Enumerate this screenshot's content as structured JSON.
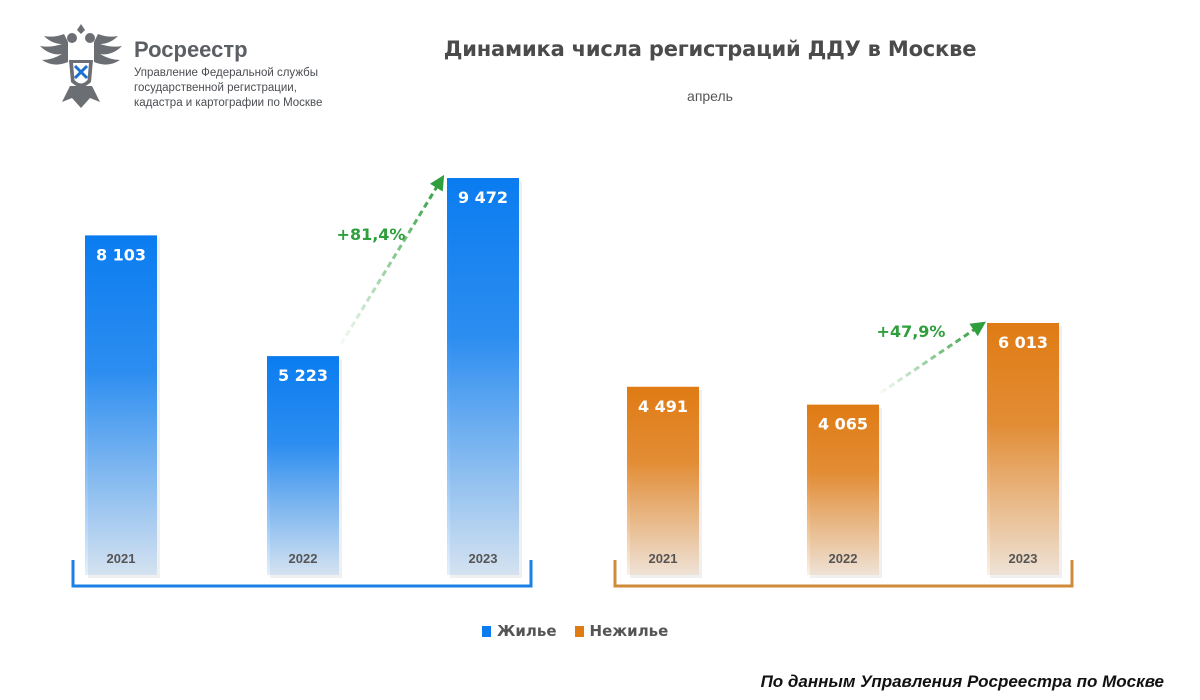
{
  "header": {
    "org_name": "Росреестр",
    "org_sub_line1": "Управление Федеральной службы",
    "org_sub_line2": "государственной регистрации,",
    "org_sub_line3": "кадастра и картографии по Москве"
  },
  "colors": {
    "blue": "#0a7cf0",
    "orange": "#e07b14",
    "green": "#2f9e3c",
    "blue_bracket": "#1a80e6",
    "orange_bracket": "#cf8a3a"
  },
  "chart_data": {
    "type": "bar",
    "title": "Динамика числа регистраций ДДУ в Москве",
    "subtitle": "апрель",
    "categories": [
      "2021",
      "2022",
      "2023"
    ],
    "series": [
      {
        "name": "Жилье",
        "values": [
          8103,
          5223,
          9472
        ],
        "labels": [
          "8 103",
          "5 223",
          "9 472"
        ],
        "growth_label": "+81,4%"
      },
      {
        "name": "Нежилье",
        "values": [
          4491,
          4065,
          6013
        ],
        "labels": [
          "4 491",
          "4 065",
          "6 013"
        ],
        "growth_label": "+47,9%"
      }
    ],
    "xlabel": "",
    "ylabel": "",
    "ylim": [
      0,
      9472
    ],
    "grid": false,
    "legend_position": "bottom-center"
  },
  "legend": {
    "items": [
      "Жилье",
      "Нежилье"
    ]
  },
  "source": "По данным Управления Росреестра по Москве"
}
